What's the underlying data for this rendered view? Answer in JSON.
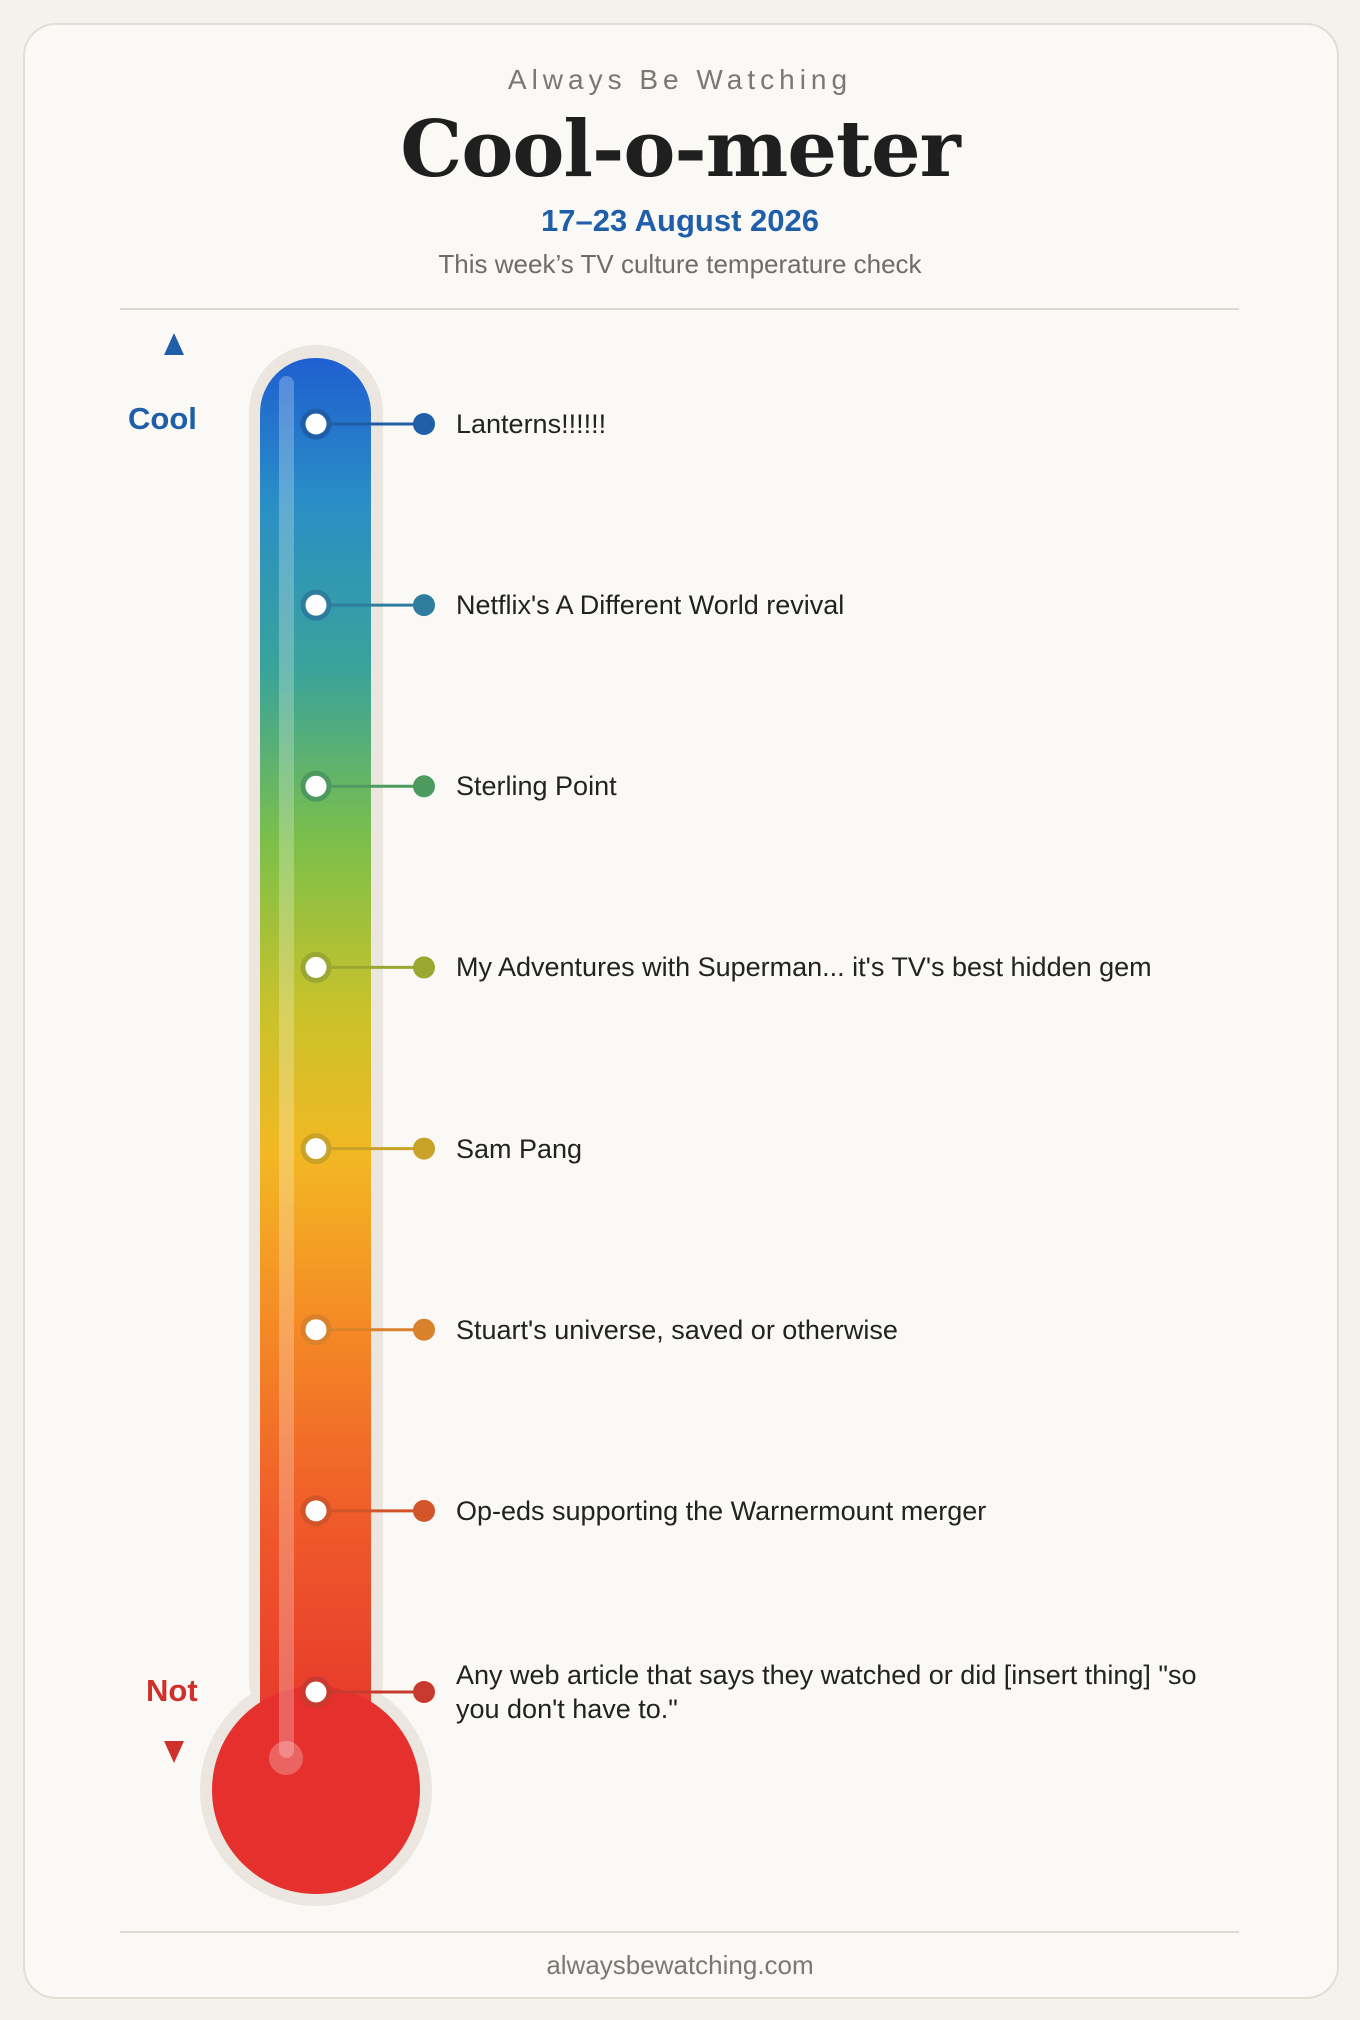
{
  "header": {
    "kicker": "Always Be Watching",
    "title": "Cool-o-meter",
    "date": "17–23 August 2026",
    "subtitle": "This week’s TV culture temperature check"
  },
  "scale": {
    "top": "Cool",
    "bottom": "Not"
  },
  "items": [
    {
      "label": "Lanterns!!!!!!",
      "color": "#1f5ea8"
    },
    {
      "label": "Netflix's A Different World revival",
      "color": "#2f7d9e"
    },
    {
      "label": "Sterling Point",
      "color": "#4c9a5e"
    },
    {
      "label": "My Adventures with Superman... it's TV's best hidden gem",
      "color": "#9aa832"
    },
    {
      "label": "Sam Pang",
      "color": "#c9a227"
    },
    {
      "label": "Stuart's universe, saved or otherwise",
      "color": "#d9822b"
    },
    {
      "label": "Op-eds supporting the Warnermount merger",
      "color": "#d2552a"
    },
    {
      "label": "Any web article that says they watched or did [insert thing] \"so you don't have to.\"",
      "color": "#c93a2e"
    }
  ],
  "footer": "alwaysbewatching.com"
}
